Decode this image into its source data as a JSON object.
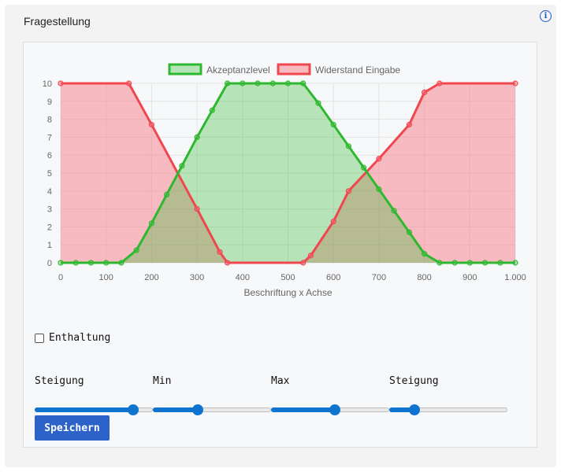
{
  "header": {
    "title": "Fragestellung",
    "info_icon": "info-circle-icon"
  },
  "chart_data": {
    "type": "area",
    "x": [
      0,
      33.3,
      66.7,
      100,
      133.3,
      150,
      166.7,
      200,
      233.3,
      266.7,
      300,
      333.3,
      350,
      366.7,
      400,
      433.3,
      466.7,
      500,
      533.3,
      550,
      566.7,
      600,
      633.3,
      666.7,
      700,
      733.3,
      766.7,
      800,
      833.3,
      866.7,
      900,
      933.3,
      966.7,
      1000
    ],
    "series": [
      {
        "name": "Akzeptanzlevel",
        "color": "#2eb82e",
        "fill": "rgba(60,190,60,0.35)",
        "values": [
          0,
          0,
          0,
          0,
          0,
          null,
          0.7,
          2.2,
          3.8,
          5.4,
          7.0,
          8.5,
          null,
          10,
          10,
          10,
          10,
          10,
          10,
          null,
          8.9,
          7.7,
          6.5,
          5.3,
          4.1,
          2.9,
          1.7,
          0.5,
          0,
          0,
          0,
          0,
          0,
          0
        ]
      },
      {
        "name": "Widerstand Eingabe",
        "color": "#f0474f",
        "fill": "rgba(246,110,125,0.45)",
        "values": [
          10,
          null,
          null,
          null,
          null,
          10,
          null,
          7.7,
          null,
          null,
          3.0,
          null,
          0.6,
          0,
          null,
          null,
          null,
          null,
          0,
          0.4,
          null,
          2.3,
          4.0,
          null,
          5.8,
          null,
          7.7,
          9.5,
          10,
          null,
          null,
          null,
          null,
          10
        ]
      }
    ],
    "x_ticks": [
      "0",
      "100",
      "200",
      "300",
      "400",
      "500",
      "600",
      "700",
      "800",
      "900",
      "1.000"
    ],
    "y_ticks": [
      "0",
      "1",
      "2",
      "3",
      "4",
      "5",
      "6",
      "7",
      "8",
      "9",
      "10"
    ],
    "xlim": [
      0,
      1000
    ],
    "ylim": [
      0,
      10
    ],
    "xlabel": "Beschriftung x Achse",
    "ylabel": "",
    "grid": true,
    "legend": "top"
  },
  "controls": {
    "abstain_label": "Enthaltung",
    "abstain_checked": false,
    "sliders": [
      {
        "label": "Steigung",
        "value": 0.83
      },
      {
        "label": "Min",
        "value": 0.38
      },
      {
        "label": "Max",
        "value": 0.54
      },
      {
        "label": "Steigung",
        "value": 0.21
      }
    ],
    "save_label": "Speichern"
  }
}
